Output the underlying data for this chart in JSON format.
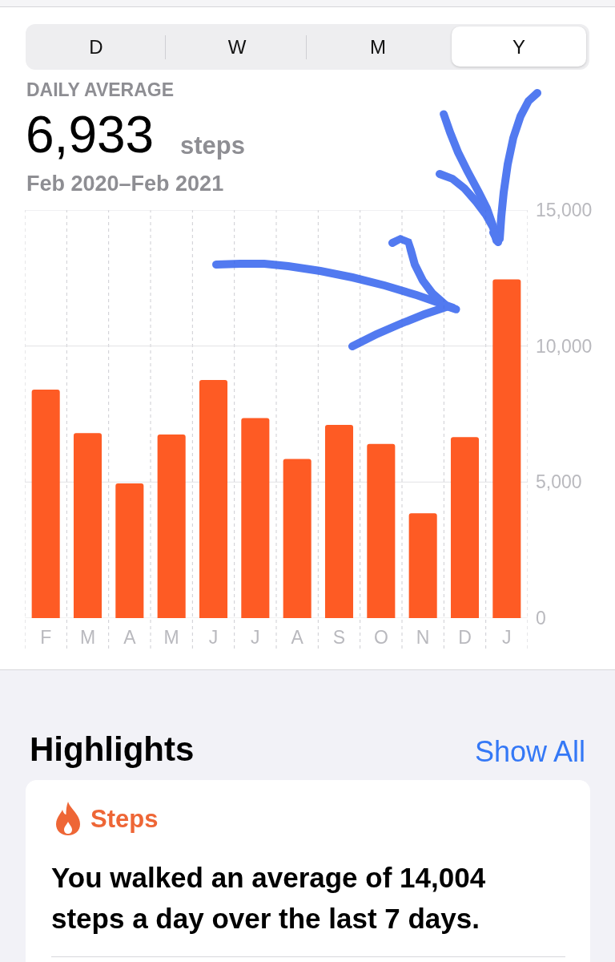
{
  "chart_data": [
    {
      "type": "bar",
      "title": "DAILY AVERAGE",
      "subtitle": "Feb 2020–Feb 2021",
      "annotations": [
        "D",
        "W",
        "M",
        "Y",
        "6,933",
        "steps"
      ],
      "categories": [
        "F",
        "M",
        "A",
        "M",
        "J",
        "J",
        "A",
        "S",
        "O",
        "N",
        "D",
        "J"
      ],
      "values": [
        8400,
        6800,
        4950,
        6750,
        8750,
        7350,
        5850,
        7100,
        6400,
        3850,
        6650,
        12450
      ],
      "color": "#fe5b24",
      "ylim": [
        0,
        15000
      ],
      "yticks": [
        0,
        {
          "value": 5000,
          "label": "5,000"
        },
        {
          "value": 10000,
          "label": "10,000"
        },
        {
          "value": 15000,
          "label": "15,000"
        }
      ],
      "grid": true
    },
    {
      "type": "other",
      "title": "Highlights",
      "annotations": [
        "Show All",
        "Steps",
        "You walked an average of 14,004 steps a day over the last 7 days."
      ]
    }
  ]
}
